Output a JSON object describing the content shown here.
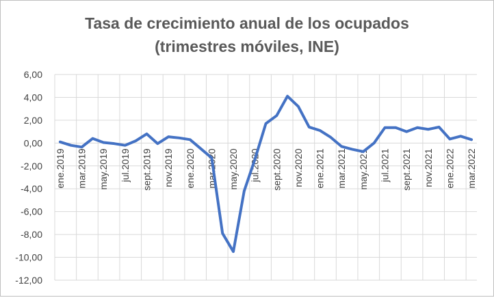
{
  "chart_data": {
    "type": "line",
    "title": [
      "Tasa de crecimiento anual de los ocupados",
      "(trimestres móviles, INE)"
    ],
    "categories": [
      "ene.2019",
      null,
      "mar.2019",
      null,
      "may.2019",
      null,
      "jul.2019",
      null,
      "sept.2019",
      null,
      "nov.2019",
      null,
      "ene.2020",
      null,
      "mar.2020",
      null,
      "may.2020",
      null,
      "jul.2020",
      null,
      "sept.2020",
      null,
      "nov.2020",
      null,
      "ene.2021",
      null,
      "mar.2021",
      null,
      "may.2021",
      null,
      "jul.2021",
      null,
      "sept.2021",
      null,
      "nov.2021",
      null,
      "ene.2022",
      null,
      "mar.2022"
    ],
    "series": [
      {
        "color": "#4472c4",
        "values": [
          0.1,
          -0.2,
          -0.35,
          0.4,
          0.05,
          -0.05,
          -0.2,
          0.2,
          0.8,
          -0.05,
          0.55,
          0.45,
          0.3,
          -0.5,
          -1.3,
          -7.9,
          -9.5,
          -4.2,
          -1.4,
          1.7,
          2.4,
          4.1,
          3.2,
          1.4,
          1.1,
          0.5,
          -0.3,
          -0.55,
          -0.75,
          0.0,
          1.35,
          1.35,
          1.0,
          1.35,
          1.2,
          1.4,
          0.35,
          0.6,
          0.3
        ]
      }
    ],
    "ylim": [
      -12,
      6
    ],
    "yticks": [
      {
        "value": 6,
        "label": "6,00"
      },
      {
        "value": 4,
        "label": "4,00"
      },
      {
        "value": 2,
        "label": "2,00"
      },
      {
        "value": 0,
        "label": "0,00"
      },
      {
        "value": -2,
        "label": "-2,00"
      },
      {
        "value": -4,
        "label": "-4,00"
      },
      {
        "value": -6,
        "label": "-6,00"
      },
      {
        "value": -8,
        "label": "-8,00"
      },
      {
        "value": -10,
        "label": "-10,00"
      },
      {
        "value": -12,
        "label": "-12,00"
      }
    ],
    "grid": true
  }
}
